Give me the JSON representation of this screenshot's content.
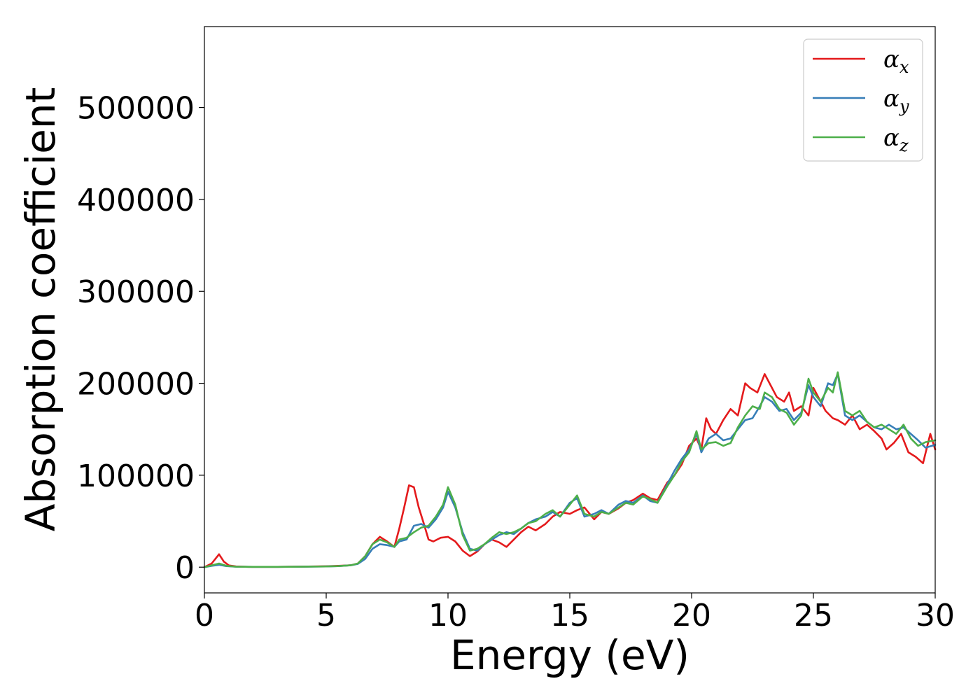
{
  "chart_data": {
    "type": "line",
    "title": "",
    "xlabel": "Energy (eV)",
    "ylabel": "Absorption coefficient",
    "xlim": [
      0,
      30
    ],
    "ylim": [
      -28000,
      588000
    ],
    "xticks": [
      0,
      5,
      10,
      15,
      20,
      25,
      30
    ],
    "yticks": [
      0,
      100000,
      200000,
      300000,
      400000,
      500000
    ],
    "grid": false,
    "legend_position": "top-right",
    "series": [
      {
        "name": "αx",
        "symbol": "α",
        "subscript": "x",
        "color": "#e41a1c",
        "x": [
          0,
          0.3,
          0.6,
          0.8,
          1.0,
          1.3,
          1.8,
          3,
          4,
          5,
          5.5,
          6.0,
          6.3,
          6.6,
          6.9,
          7.2,
          7.5,
          7.8,
          8.0,
          8.2,
          8.4,
          8.6,
          8.8,
          9.0,
          9.2,
          9.4,
          9.7,
          10.0,
          10.3,
          10.6,
          10.9,
          11.2,
          11.5,
          11.8,
          12.1,
          12.4,
          12.7,
          13.0,
          13.3,
          13.6,
          14.0,
          14.3,
          14.6,
          15.0,
          15.3,
          15.6,
          16.0,
          16.3,
          16.6,
          17.0,
          17.3,
          17.6,
          18.0,
          18.3,
          18.6,
          19.0,
          19.3,
          19.6,
          19.9,
          20.2,
          20.4,
          20.6,
          20.8,
          21.0,
          21.3,
          21.6,
          21.9,
          22.2,
          22.4,
          22.7,
          23.0,
          23.2,
          23.5,
          23.8,
          24.0,
          24.2,
          24.5,
          24.8,
          25.0,
          25.2,
          25.5,
          25.8,
          26.0,
          26.3,
          26.6,
          26.9,
          27.2,
          27.5,
          27.8,
          28.0,
          28.3,
          28.6,
          28.9,
          29.2,
          29.5,
          29.8,
          30.0
        ],
        "values": [
          0,
          4000,
          14000,
          6000,
          2000,
          800,
          300,
          300,
          600,
          1000,
          1500,
          2000,
          4000,
          12000,
          25000,
          33000,
          28000,
          22000,
          42000,
          65000,
          89000,
          87000,
          65000,
          48000,
          30000,
          28000,
          32000,
          33000,
          28000,
          18000,
          12000,
          17000,
          25000,
          30000,
          27000,
          22000,
          30000,
          38000,
          44000,
          40000,
          47000,
          55000,
          60000,
          58000,
          62000,
          65000,
          52000,
          60000,
          58000,
          64000,
          70000,
          73000,
          80000,
          75000,
          73000,
          92000,
          100000,
          112000,
          132000,
          140000,
          128000,
          162000,
          150000,
          145000,
          160000,
          172000,
          165000,
          200000,
          195000,
          190000,
          210000,
          200000,
          185000,
          180000,
          190000,
          170000,
          175000,
          165000,
          195000,
          185000,
          170000,
          162000,
          160000,
          155000,
          165000,
          150000,
          155000,
          148000,
          140000,
          128000,
          135000,
          145000,
          125000,
          120000,
          113000,
          145000,
          128000
        ]
      },
      {
        "name": "αy",
        "symbol": "α",
        "subscript": "y",
        "color": "#377eb8",
        "x": [
          0,
          0.3,
          0.6,
          0.9,
          1.3,
          2,
          3,
          4,
          5,
          5.5,
          6.0,
          6.3,
          6.6,
          6.9,
          7.2,
          7.5,
          7.8,
          8.0,
          8.3,
          8.6,
          8.9,
          9.2,
          9.5,
          9.8,
          10.0,
          10.3,
          10.6,
          10.9,
          11.2,
          11.5,
          11.8,
          12.1,
          12.4,
          12.7,
          13.0,
          13.3,
          13.6,
          14.0,
          14.3,
          14.6,
          15.0,
          15.3,
          15.6,
          16.0,
          16.3,
          16.6,
          17.0,
          17.3,
          17.6,
          18.0,
          18.3,
          18.6,
          19.0,
          19.3,
          19.6,
          19.9,
          20.2,
          20.4,
          20.7,
          21.0,
          21.3,
          21.6,
          21.9,
          22.2,
          22.5,
          22.8,
          23.0,
          23.3,
          23.6,
          23.9,
          24.2,
          24.5,
          24.8,
          25.0,
          25.3,
          25.6,
          25.8,
          26.0,
          26.3,
          26.6,
          26.9,
          27.2,
          27.5,
          27.8,
          28.1,
          28.4,
          28.7,
          29.0,
          29.3,
          29.6,
          30.0
        ],
        "values": [
          0,
          1500,
          2500,
          1200,
          500,
          300,
          300,
          500,
          800,
          1200,
          2000,
          3500,
          9000,
          20000,
          25000,
          24000,
          22000,
          28000,
          30000,
          45000,
          47000,
          43000,
          52000,
          65000,
          82000,
          65000,
          38000,
          20000,
          18000,
          25000,
          30000,
          35000,
          38000,
          36000,
          42000,
          48000,
          52000,
          55000,
          60000,
          55000,
          70000,
          75000,
          55000,
          58000,
          62000,
          58000,
          68000,
          72000,
          70000,
          78000,
          72000,
          70000,
          90000,
          105000,
          118000,
          128000,
          145000,
          125000,
          140000,
          145000,
          138000,
          140000,
          150000,
          160000,
          162000,
          175000,
          185000,
          180000,
          170000,
          172000,
          160000,
          168000,
          198000,
          185000,
          175000,
          200000,
          198000,
          210000,
          165000,
          160000,
          165000,
          158000,
          152000,
          150000,
          155000,
          150000,
          152000,
          145000,
          138000,
          130000,
          133000
        ]
      },
      {
        "name": "αz",
        "symbol": "α",
        "subscript": "z",
        "color": "#4daf4a",
        "x": [
          0,
          0.3,
          0.6,
          0.9,
          1.3,
          2,
          3,
          4,
          5,
          5.5,
          6.0,
          6.3,
          6.6,
          6.9,
          7.2,
          7.5,
          7.8,
          8.0,
          8.3,
          8.6,
          8.9,
          9.2,
          9.5,
          9.8,
          10.0,
          10.3,
          10.6,
          10.9,
          11.2,
          11.5,
          11.8,
          12.1,
          12.4,
          12.7,
          13.0,
          13.3,
          13.6,
          14.0,
          14.3,
          14.6,
          15.0,
          15.3,
          15.6,
          16.0,
          16.3,
          16.6,
          17.0,
          17.3,
          17.6,
          18.0,
          18.3,
          18.6,
          19.0,
          19.3,
          19.6,
          19.9,
          20.2,
          20.4,
          20.7,
          21.0,
          21.3,
          21.6,
          21.9,
          22.2,
          22.5,
          22.8,
          23.0,
          23.3,
          23.6,
          23.9,
          24.2,
          24.5,
          24.8,
          25.0,
          25.3,
          25.6,
          25.8,
          26.0,
          26.3,
          26.6,
          26.9,
          27.2,
          27.5,
          27.8,
          28.1,
          28.4,
          28.7,
          29.0,
          29.3,
          29.6,
          30.0
        ],
        "values": [
          0,
          2000,
          4000,
          1500,
          500,
          300,
          300,
          500,
          800,
          1200,
          2000,
          4000,
          12000,
          25000,
          30000,
          27000,
          22000,
          30000,
          32000,
          38000,
          43000,
          45000,
          55000,
          68000,
          87000,
          68000,
          35000,
          18000,
          20000,
          25000,
          32000,
          38000,
          36000,
          38000,
          42000,
          48000,
          50000,
          58000,
          62000,
          55000,
          68000,
          78000,
          58000,
          55000,
          60000,
          58000,
          65000,
          70000,
          68000,
          77000,
          74000,
          70000,
          88000,
          100000,
          115000,
          125000,
          148000,
          128000,
          135000,
          136000,
          132000,
          135000,
          152000,
          165000,
          175000,
          172000,
          190000,
          185000,
          172000,
          168000,
          155000,
          165000,
          205000,
          190000,
          180000,
          195000,
          190000,
          212000,
          170000,
          165000,
          170000,
          158000,
          152000,
          155000,
          150000,
          145000,
          155000,
          140000,
          132000,
          136000,
          138000
        ]
      }
    ]
  }
}
